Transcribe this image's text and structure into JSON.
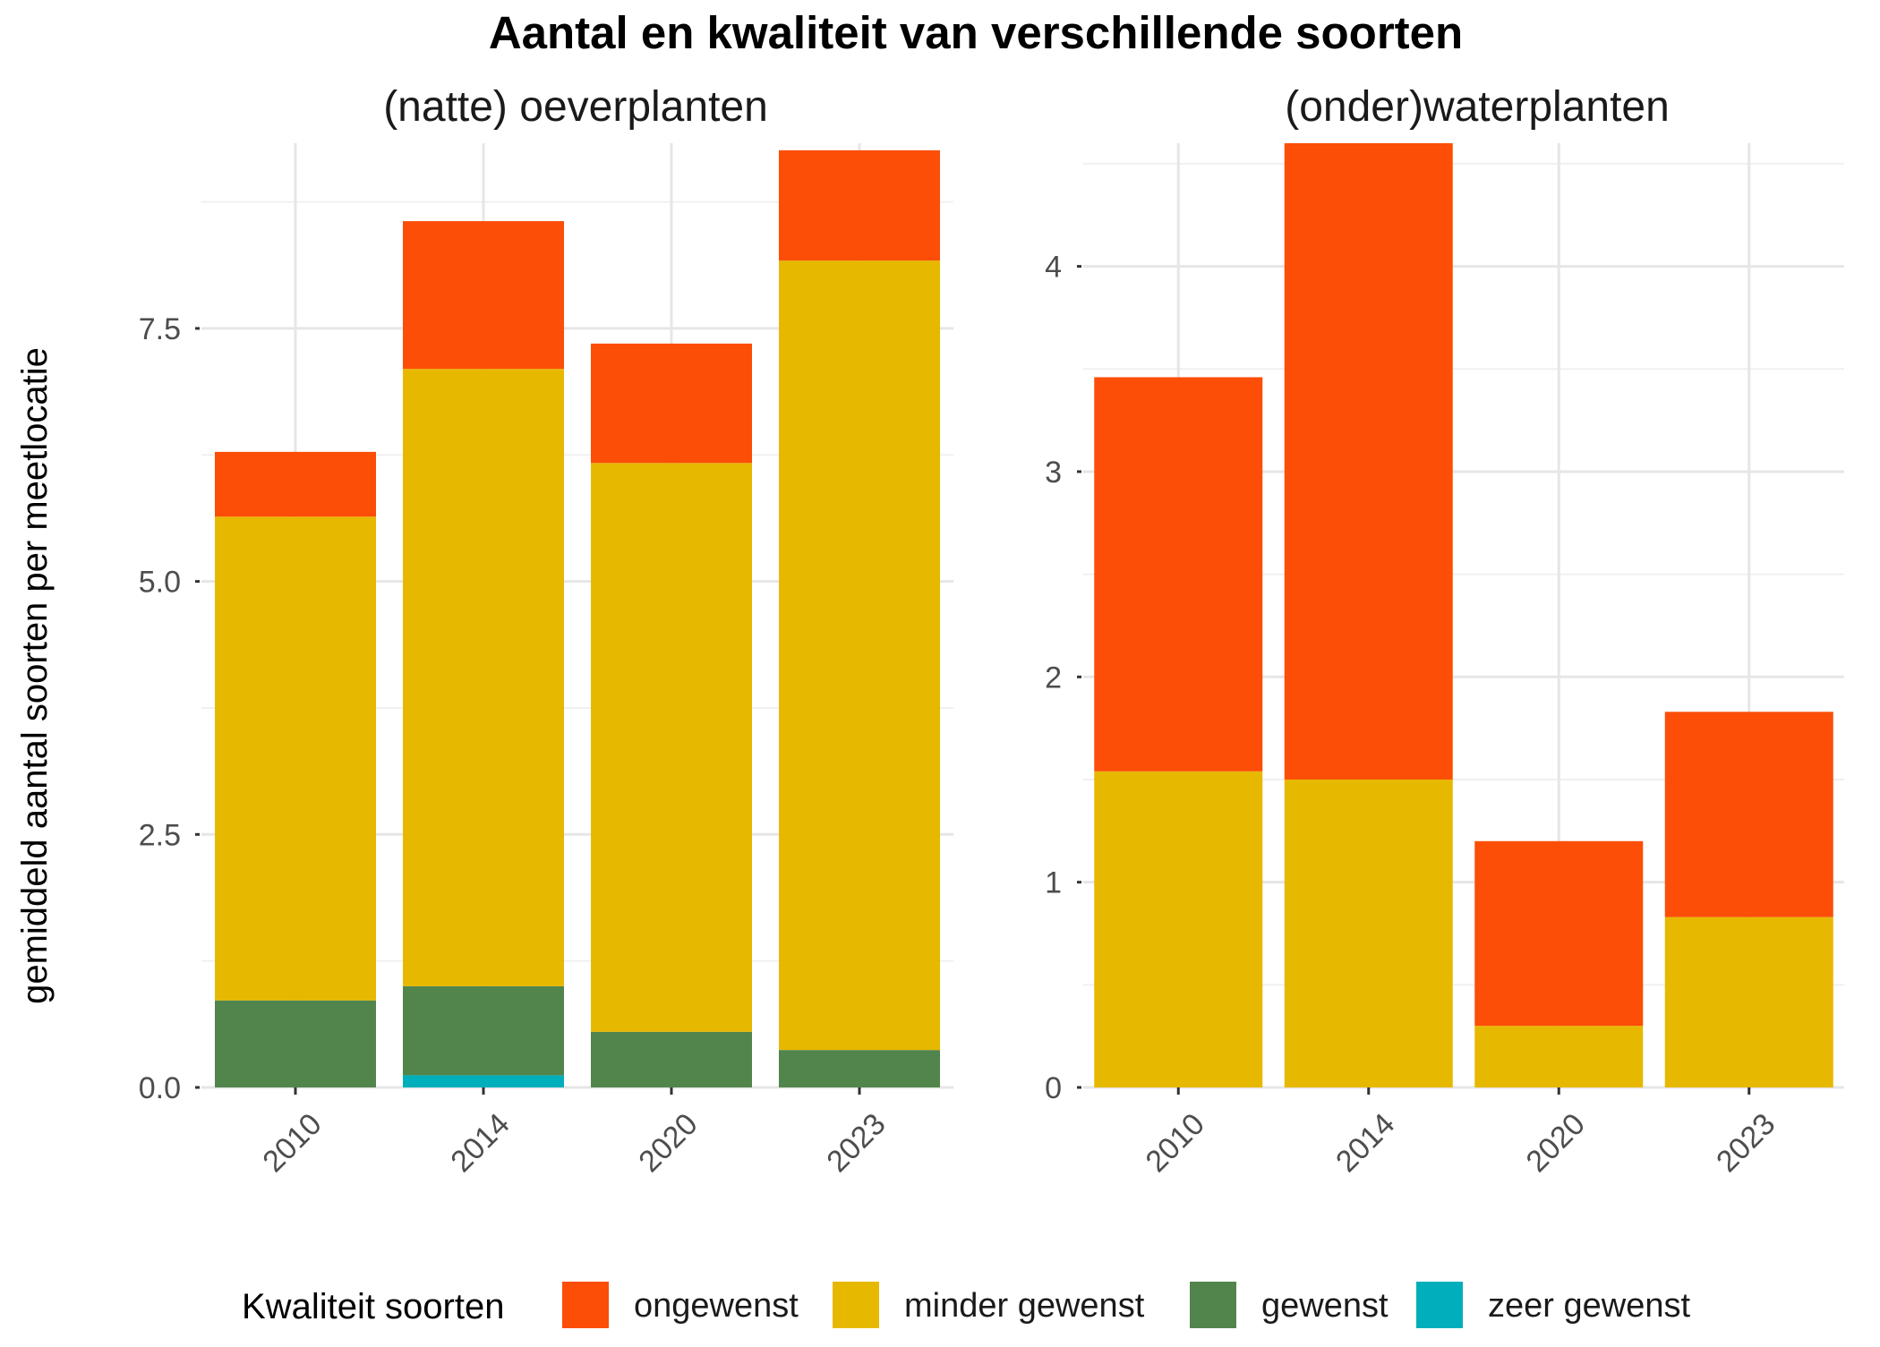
{
  "chart_data": {
    "type": "bar",
    "stacked": true,
    "title": "Aantal en kwaliteit van verschillende soorten",
    "ylabel": "gemiddeld aantal soorten per meetlocatie",
    "legend": {
      "title": "Kwaliteit soorten",
      "position": "bottom",
      "entries": [
        "ongewenst",
        "minder gewenst",
        "gewenst",
        "zeer gewenst"
      ]
    },
    "colors": {
      "ongewenst": "#FC4E07",
      "minder gewenst": "#E7B800",
      "gewenst": "#52854C",
      "zeer gewenst": "#00AFBB"
    },
    "grid": true,
    "panels": [
      {
        "title": "(natte) oeverplanten",
        "categories": [
          "2010",
          "2014",
          "2020",
          "2023"
        ],
        "ylim": [
          0,
          9.33
        ],
        "yticks": [
          0,
          2.5,
          5,
          7.5
        ],
        "ytick_labels": [
          "0.0",
          "2.5",
          "5.0",
          "7.5"
        ],
        "series": [
          {
            "name": "zeer gewenst",
            "values": [
              0,
              0.12,
              0,
              0
            ]
          },
          {
            "name": "gewenst",
            "values": [
              0.86,
              0.88,
              0.55,
              0.37
            ]
          },
          {
            "name": "minder gewenst",
            "values": [
              4.78,
              6.1,
              5.62,
              7.8
            ]
          },
          {
            "name": "ongewenst",
            "values": [
              0.64,
              1.46,
              1.18,
              1.09
            ]
          }
        ]
      },
      {
        "title": "(onder)waterplanten",
        "categories": [
          "2010",
          "2014",
          "2020",
          "2023"
        ],
        "ylim": [
          0,
          4.6
        ],
        "yticks": [
          0,
          1,
          2,
          3,
          4
        ],
        "ytick_labels": [
          "0",
          "1",
          "2",
          "3",
          "4"
        ],
        "series": [
          {
            "name": "zeer gewenst",
            "values": [
              0,
              0,
              0,
              0
            ]
          },
          {
            "name": "gewenst",
            "values": [
              0,
              0,
              0,
              0
            ]
          },
          {
            "name": "minder gewenst",
            "values": [
              1.54,
              1.5,
              0.3,
              0.83
            ]
          },
          {
            "name": "ongewenst",
            "values": [
              1.92,
              3.1,
              0.9,
              1.0
            ]
          }
        ]
      }
    ]
  }
}
